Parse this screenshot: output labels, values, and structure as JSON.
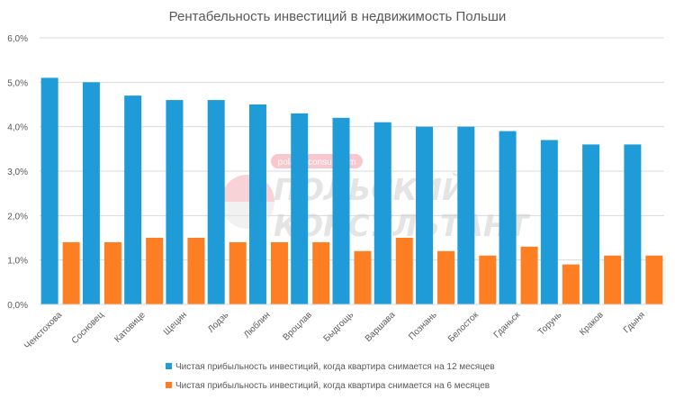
{
  "chart_data": {
    "type": "bar",
    "title": "Рентабельность инвестиций в недвижимость Польши",
    "xlabel": "",
    "ylabel": "",
    "ylim": [
      0,
      6
    ],
    "y_ticks": [
      "0,0%",
      "1,0%",
      "2,0%",
      "3,0%",
      "4,0%",
      "5,0%",
      "6,0%"
    ],
    "grid": true,
    "legend_position": "bottom",
    "categories": [
      "Ченстохова",
      "Сосновец",
      "Катовице",
      "Щецин",
      "Лодзь",
      "Люблин",
      "Вроцлав",
      "Быдгощь",
      "Варшава",
      "Познань",
      "Белосток",
      "Гданьск",
      "Торунь",
      "Краков",
      "Гдыня"
    ],
    "series": [
      {
        "name": "Чистая прибыльность инвестиций, когда квартира снимается на 12 месяцев",
        "color": "#1f9bd7",
        "values": [
          5.1,
          5.0,
          4.7,
          4.6,
          4.6,
          4.5,
          4.3,
          4.2,
          4.1,
          4.0,
          4.0,
          3.9,
          3.7,
          3.6,
          3.6
        ]
      },
      {
        "name": "Чистая прибыльность инвестиций, когда квартира снимается на 6 месяцев",
        "color": "#fd7e23",
        "values": [
          1.4,
          1.4,
          1.5,
          1.5,
          1.4,
          1.4,
          1.4,
          1.2,
          1.5,
          1.2,
          1.1,
          1.3,
          0.9,
          1.1,
          1.1
        ]
      }
    ]
  },
  "watermark": {
    "site": "poland-consult.com",
    "line1": "ПОЛЬСКИЙ",
    "line2": "КОНСУЛЬТАНТ"
  }
}
